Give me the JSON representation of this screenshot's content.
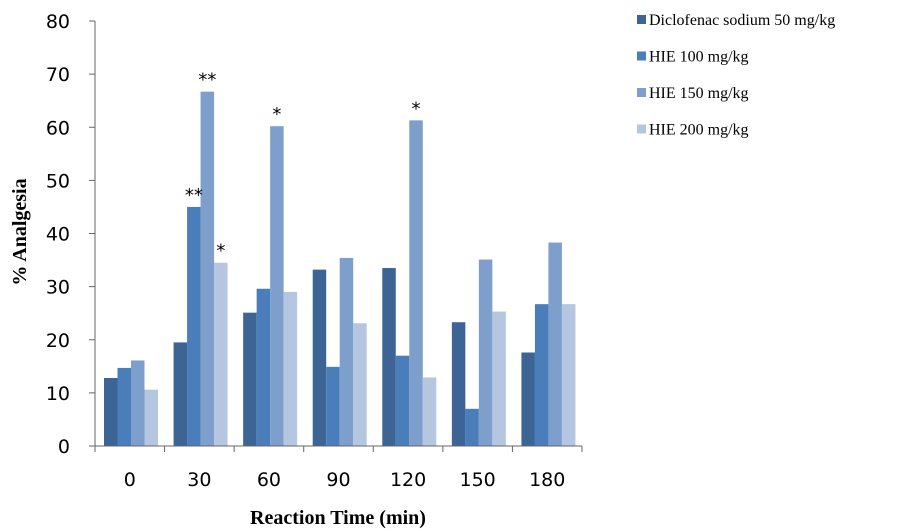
{
  "chart_data": {
    "type": "bar",
    "xlabel": "Reaction Time (min)",
    "ylabel": "% Analgesia",
    "ylim": [
      0,
      80
    ],
    "yticks": [
      0,
      10,
      20,
      30,
      40,
      50,
      60,
      70,
      80
    ],
    "categories": [
      "0",
      "30",
      "60",
      "90",
      "120",
      "150",
      "180"
    ],
    "series": [
      {
        "name": "Diclofenac sodium 50 mg/kg",
        "color": "#3c6595",
        "values": [
          12.8,
          19.5,
          25.1,
          33.2,
          33.5,
          23.3,
          17.6
        ]
      },
      {
        "name": "HIE 100 mg/kg",
        "color": "#4a7ebb",
        "values": [
          14.7,
          45.0,
          29.6,
          14.9,
          17.0,
          7.0,
          26.7
        ]
      },
      {
        "name": "HIE 150 mg/kg",
        "color": "#7e9fcc",
        "values": [
          16.1,
          66.7,
          60.2,
          35.4,
          61.3,
          35.1,
          38.3
        ]
      },
      {
        "name": "HIE 200 mg/kg",
        "color": "#b4c6e0",
        "values": [
          10.6,
          34.5,
          29.0,
          23.1,
          12.9,
          25.3,
          26.7
        ]
      }
    ],
    "annotations": [
      {
        "category": "30",
        "series": 1,
        "text": "**"
      },
      {
        "category": "30",
        "series": 2,
        "text": "**"
      },
      {
        "category": "30",
        "series": 3,
        "text": "*"
      },
      {
        "category": "60",
        "series": 2,
        "text": "*"
      },
      {
        "category": "120",
        "series": 2,
        "text": "*"
      }
    ],
    "legend_position": "top-right",
    "grid": false
  }
}
